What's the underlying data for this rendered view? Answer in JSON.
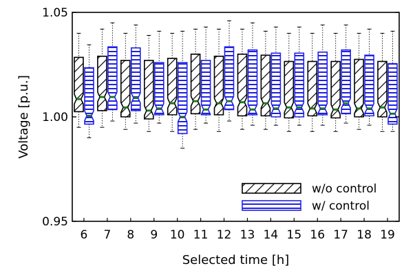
{
  "chart_data": {
    "type": "box",
    "xlabel": "Selected time [h]",
    "ylabel": "Voltage [p.u.]",
    "ylim": [
      0.95,
      1.05
    ],
    "yticks": [
      "0.95",
      "1.00",
      "1.05"
    ],
    "categories": [
      "6",
      "7",
      "8",
      "9",
      "10",
      "11",
      "12",
      "13",
      "14",
      "15",
      "16",
      "17",
      "18",
      "19"
    ],
    "legend_position": "lower-right",
    "series": [
      {
        "name": "w/o control",
        "fill": "hatch-diagonal",
        "edge_color": "#000000",
        "median_color": "#1a7f1a",
        "boxes": [
          {
            "whislo": 0.995,
            "q1": 1.0025,
            "med": 1.0085,
            "q3": 1.0285,
            "whishi": 1.04
          },
          {
            "whislo": 0.995,
            "q1": 1.003,
            "med": 1.0095,
            "q3": 1.029,
            "whishi": 1.042
          },
          {
            "whislo": 0.994,
            "q1": 1.0,
            "med": 1.0045,
            "q3": 1.027,
            "whishi": 1.04
          },
          {
            "whislo": 0.993,
            "q1": 0.999,
            "med": 1.003,
            "q3": 1.027,
            "whishi": 1.039
          },
          {
            "whislo": 0.993,
            "q1": 1.001,
            "med": 1.0065,
            "q3": 1.028,
            "whishi": 1.04
          },
          {
            "whislo": 0.994,
            "q1": 1.0015,
            "med": 1.0075,
            "q3": 1.03,
            "whishi": 1.042
          },
          {
            "whislo": 0.993,
            "q1": 1.001,
            "med": 1.0065,
            "q3": 1.029,
            "whishi": 1.042
          },
          {
            "whislo": 0.994,
            "q1": 1.0005,
            "med": 1.007,
            "q3": 1.03,
            "whishi": 1.042
          },
          {
            "whislo": 0.994,
            "q1": 1.0005,
            "med": 1.0065,
            "q3": 1.0295,
            "whishi": 1.041
          },
          {
            "whislo": 0.993,
            "q1": 0.9995,
            "med": 1.0045,
            "q3": 1.0265,
            "whishi": 1.04
          },
          {
            "whislo": 0.993,
            "q1": 1.0005,
            "med": 1.004,
            "q3": 1.0265,
            "whishi": 1.04
          },
          {
            "whislo": 0.993,
            "q1": 0.9995,
            "med": 1.0035,
            "q3": 1.0265,
            "whishi": 1.04
          },
          {
            "whislo": 0.994,
            "q1": 1.0,
            "med": 1.004,
            "q3": 1.0275,
            "whishi": 1.04
          },
          {
            "whislo": 0.993,
            "q1": 1.0,
            "med": 1.0045,
            "q3": 1.0265,
            "whishi": 1.04
          }
        ]
      },
      {
        "name": "w/ control",
        "fill": "hatch-horizontal",
        "edge_color": "#1f1fe6",
        "median_color": "#1a7f1a",
        "boxes": [
          {
            "whislo": 0.99,
            "q1": 0.9965,
            "med": 1.0005,
            "q3": 1.0235,
            "whishi": 1.0345
          },
          {
            "whislo": 0.998,
            "q1": 1.0035,
            "med": 1.0095,
            "q3": 1.0335,
            "whishi": 1.045
          },
          {
            "whislo": 0.997,
            "q1": 1.003,
            "med": 1.009,
            "q3": 1.033,
            "whishi": 1.044
          },
          {
            "whislo": 0.997,
            "q1": 1.001,
            "med": 1.004,
            "q3": 1.026,
            "whishi": 1.041
          },
          {
            "whislo": 0.985,
            "q1": 0.992,
            "med": 1.0,
            "q3": 1.026,
            "whishi": 1.041
          },
          {
            "whislo": 0.997,
            "q1": 1.001,
            "med": 1.0035,
            "q3": 1.027,
            "whishi": 1.043
          },
          {
            "whislo": 0.998,
            "q1": 1.0035,
            "med": 1.0075,
            "q3": 1.0335,
            "whishi": 1.046
          },
          {
            "whislo": 0.996,
            "q1": 1.001,
            "med": 1.0035,
            "q3": 1.032,
            "whishi": 1.045
          },
          {
            "whislo": 0.996,
            "q1": 1.0,
            "med": 1.004,
            "q3": 1.0305,
            "whishi": 1.043
          },
          {
            "whislo": 0.996,
            "q1": 1.0,
            "med": 1.0045,
            "q3": 1.0305,
            "whishi": 1.043
          },
          {
            "whislo": 0.996,
            "q1": 1.001,
            "med": 1.004,
            "q3": 1.031,
            "whishi": 1.044
          },
          {
            "whislo": 0.997,
            "q1": 1.0015,
            "med": 1.0065,
            "q3": 1.032,
            "whishi": 1.044
          },
          {
            "whislo": 0.996,
            "q1": 1.0005,
            "med": 1.004,
            "q3": 1.0295,
            "whishi": 1.042
          },
          {
            "whislo": 0.993,
            "q1": 0.9965,
            "med": 1.0015,
            "q3": 1.0255,
            "whishi": 1.041
          }
        ]
      }
    ]
  }
}
